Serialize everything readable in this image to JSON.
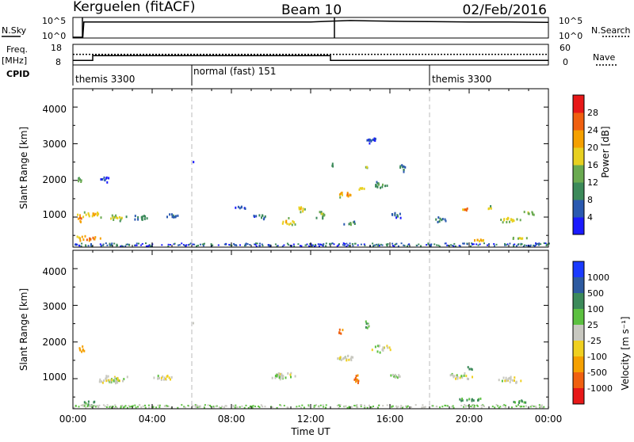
{
  "header": {
    "station": "Kerguelen (fitACF)",
    "beam": "Beam 10",
    "date": "02/Feb/2016"
  },
  "nsky_panel": {
    "left_label": "N.Sky",
    "right_label": "N.Search",
    "left_ticks": [
      "10^5",
      "10^0"
    ],
    "right_ticks": [
      "10^5",
      "10^0"
    ]
  },
  "freq_panel": {
    "left_label_line1": "Freq.",
    "left_label_line2": "[MHz]",
    "right_label": "Nave",
    "left_ticks": [
      "18",
      "8"
    ],
    "right_ticks": [
      "60",
      "0"
    ],
    "freq_series": {
      "t": [
        0,
        1,
        1,
        13,
        13,
        24
      ],
      "v": [
        10.0,
        10.0,
        12.5,
        12.5,
        10.0,
        10.0
      ]
    },
    "nave_series": {
      "t": [
        0,
        24
      ],
      "v": [
        31,
        31
      ]
    }
  },
  "cpid_panel": {
    "label": "CPID",
    "segments": [
      {
        "start": 0,
        "end": 6,
        "text": "themis 3300"
      },
      {
        "start": 6,
        "end": 18,
        "text": "normal (fast) 151"
      },
      {
        "start": 18,
        "end": 24,
        "text": "themis 3300"
      }
    ]
  },
  "time_axis": {
    "ticks": [
      "00:00",
      "04:00",
      "08:00",
      "12:00",
      "16:00",
      "20:00",
      "00:00"
    ],
    "label": "Time UT"
  },
  "power_panel": {
    "ylabel": "Slant Range [km]",
    "yticks": [
      "1000",
      "2000",
      "3000",
      "4000"
    ],
    "colorbar_label": "Power [dB]",
    "colorbar_ticks": [
      "4",
      "8",
      "12",
      "16",
      "20",
      "24",
      "28"
    ],
    "colors": [
      "#1a1aff",
      "#2a59b0",
      "#3c8a5a",
      "#6aaa50",
      "#e8d020",
      "#f5a000",
      "#f06010",
      "#e81818"
    ]
  },
  "velocity_panel": {
    "ylabel": "Slant Range [km]",
    "yticks": [
      "1000",
      "2000",
      "3000",
      "4000"
    ],
    "colorbar_label": "Velocity [m s⁻¹]",
    "colorbar_ticks": [
      "1000",
      "500",
      "100",
      "25",
      "-25",
      "-100",
      "-500",
      "-1000"
    ],
    "colors": [
      "#1a3aff",
      "#2d5aa0",
      "#3c8a5a",
      "#5cc040",
      "#c8c8c0",
      "#f0d020",
      "#f5a000",
      "#f06010",
      "#e81818"
    ]
  },
  "chart_data": [
    {
      "type": "line",
      "title": "N.Sky",
      "x": [
        0,
        0.5,
        0.55,
        12,
        13,
        14,
        15,
        16,
        18,
        20,
        22,
        24
      ],
      "y_log10": [
        0,
        0,
        4.0,
        4.0,
        4.2,
        4.4,
        4.3,
        4.2,
        4.1,
        4.0,
        4.0,
        3.9
      ]
    },
    {
      "type": "line",
      "title": "Freq.",
      "x": [
        0,
        1,
        1,
        13,
        13,
        24
      ],
      "y": [
        10.0,
        10.0,
        12.5,
        12.5,
        10.0,
        10.0
      ],
      "ylim": [
        8,
        18
      ]
    },
    {
      "type": "heatmap",
      "title": "Power [dB]",
      "xlim_hours": [
        0,
        24
      ],
      "ylim_km": [
        180,
        4500
      ],
      "blobs": [
        {
          "t": 0.3,
          "r": 1000,
          "dt": 0.6,
          "dr": 280,
          "p": 28
        },
        {
          "t": 1.0,
          "r": 1100,
          "dt": 1.2,
          "dr": 260,
          "p": 24
        },
        {
          "t": 2.2,
          "r": 1000,
          "dt": 1.4,
          "dr": 220,
          "p": 20
        },
        {
          "t": 0.8,
          "r": 450,
          "dt": 1.6,
          "dr": 200,
          "p": 28
        },
        {
          "t": 3.5,
          "r": 1000,
          "dt": 1.2,
          "dr": 200,
          "p": 14
        },
        {
          "t": 5.0,
          "r": 1050,
          "dt": 1.0,
          "dr": 180,
          "p": 12
        },
        {
          "t": 0.3,
          "r": 2000,
          "dt": 0.4,
          "dr": 300,
          "p": 18
        },
        {
          "t": 1.5,
          "r": 2050,
          "dt": 0.8,
          "dr": 200,
          "p": 10
        },
        {
          "t": 6.1,
          "r": 2550,
          "dt": 0.3,
          "dr": 80,
          "p": 12
        },
        {
          "t": 8.5,
          "r": 1300,
          "dt": 0.9,
          "dr": 140,
          "p": 10
        },
        {
          "t": 9.5,
          "r": 1050,
          "dt": 0.9,
          "dr": 200,
          "p": 14
        },
        {
          "t": 10.8,
          "r": 900,
          "dt": 1.0,
          "dr": 250,
          "p": 24
        },
        {
          "t": 11.5,
          "r": 1250,
          "dt": 0.8,
          "dr": 220,
          "p": 22
        },
        {
          "t": 12.5,
          "r": 1100,
          "dt": 0.8,
          "dr": 300,
          "p": 18
        },
        {
          "t": 13.8,
          "r": 1650,
          "dt": 1.3,
          "dr": 200,
          "p": 26
        },
        {
          "t": 14.5,
          "r": 1800,
          "dt": 0.7,
          "dr": 150,
          "p": 22
        },
        {
          "t": 15.5,
          "r": 1900,
          "dt": 1.0,
          "dr": 250,
          "p": 16
        },
        {
          "t": 13.1,
          "r": 2450,
          "dt": 0.4,
          "dr": 150,
          "p": 16
        },
        {
          "t": 14.8,
          "r": 2400,
          "dt": 0.3,
          "dr": 150,
          "p": 18
        },
        {
          "t": 16.6,
          "r": 2350,
          "dt": 0.5,
          "dr": 350,
          "p": 14
        },
        {
          "t": 14.0,
          "r": 850,
          "dt": 0.8,
          "dr": 200,
          "p": 16
        },
        {
          "t": 16.3,
          "r": 1100,
          "dt": 0.8,
          "dr": 250,
          "p": 12
        },
        {
          "t": 18.5,
          "r": 950,
          "dt": 0.9,
          "dr": 180,
          "p": 14
        },
        {
          "t": 19.8,
          "r": 1250,
          "dt": 0.5,
          "dr": 220,
          "p": 28
        },
        {
          "t": 21.0,
          "r": 1250,
          "dt": 0.5,
          "dr": 180,
          "p": 22
        },
        {
          "t": 22.0,
          "r": 950,
          "dt": 1.4,
          "dr": 220,
          "p": 22
        },
        {
          "t": 23.0,
          "r": 1150,
          "dt": 0.8,
          "dr": 180,
          "p": 20
        },
        {
          "t": 20.5,
          "r": 400,
          "dt": 1.2,
          "dr": 120,
          "p": 26
        },
        {
          "t": 22.5,
          "r": 450,
          "dt": 1.2,
          "dr": 120,
          "p": 20
        },
        {
          "t": 15.0,
          "r": 3150,
          "dt": 0.8,
          "dr": 300,
          "p": 10
        }
      ]
    },
    {
      "type": "heatmap",
      "title": "Velocity [m s⁻¹]",
      "xlim_hours": [
        0,
        24
      ],
      "ylim_km": [
        180,
        4500
      ],
      "blobs": [
        {
          "t": 2.0,
          "r": 1000,
          "dt": 2.2,
          "dr": 300,
          "v": 0
        },
        {
          "t": 4.5,
          "r": 1050,
          "dt": 1.6,
          "dr": 200,
          "v": 0
        },
        {
          "t": 0.4,
          "r": 1800,
          "dt": 0.4,
          "dr": 350,
          "v": -150
        },
        {
          "t": 0.8,
          "r": 350,
          "dt": 1.2,
          "dr": 150,
          "v": 60
        },
        {
          "t": 10.5,
          "r": 1100,
          "dt": 2.0,
          "dr": 300,
          "v": 0
        },
        {
          "t": 13.8,
          "r": 1600,
          "dt": 1.6,
          "dr": 250,
          "v": 0
        },
        {
          "t": 15.5,
          "r": 1850,
          "dt": 1.2,
          "dr": 250,
          "v": 0
        },
        {
          "t": 13.5,
          "r": 2300,
          "dt": 0.5,
          "dr": 200,
          "v": -300
        },
        {
          "t": 14.8,
          "r": 2500,
          "dt": 0.4,
          "dr": 300,
          "v": 60
        },
        {
          "t": 14.3,
          "r": 1000,
          "dt": 0.4,
          "dr": 450,
          "v": -300
        },
        {
          "t": 19.5,
          "r": 1100,
          "dt": 1.5,
          "dr": 250,
          "v": 0
        },
        {
          "t": 22.0,
          "r": 1000,
          "dt": 1.6,
          "dr": 250,
          "v": 0
        },
        {
          "t": 20.0,
          "r": 450,
          "dt": 2.0,
          "dr": 130,
          "v": 70
        },
        {
          "t": 22.5,
          "r": 400,
          "dt": 1.4,
          "dr": 120,
          "v": 60
        },
        {
          "t": 6.1,
          "r": 2550,
          "dt": 0.3,
          "dr": 80,
          "v": 0
        },
        {
          "t": 16.3,
          "r": 1100,
          "dt": 0.8,
          "dr": 250,
          "v": 0
        },
        {
          "t": 20.0,
          "r": 1300,
          "dt": 0.4,
          "dr": 200,
          "v": 200
        }
      ]
    }
  ]
}
